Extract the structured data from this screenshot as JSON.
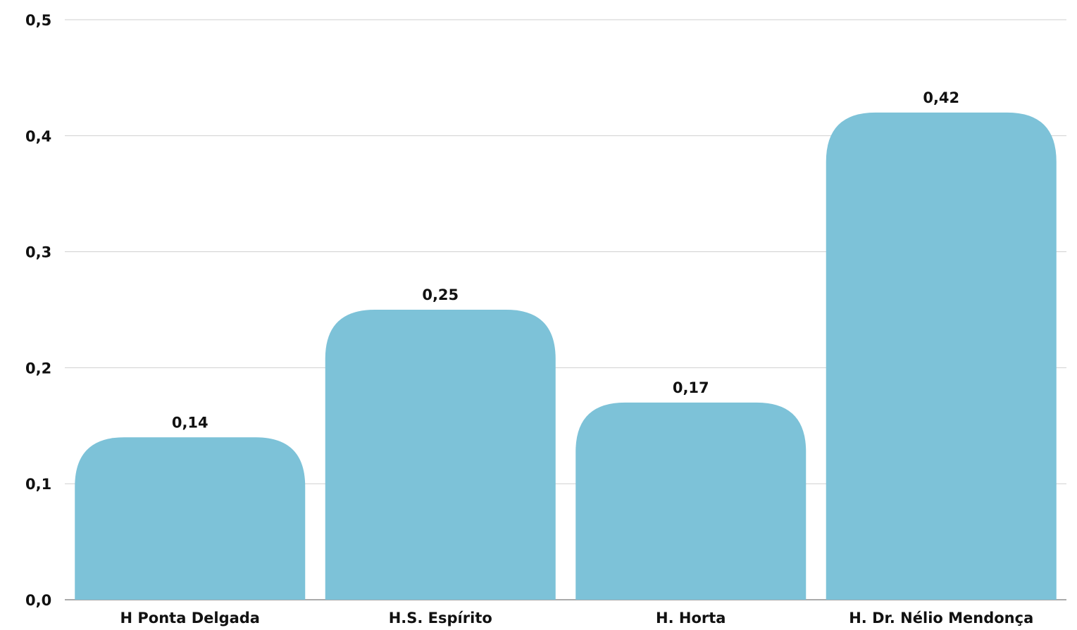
{
  "chart_data": {
    "type": "bar",
    "categories": [
      "H Ponta Delgada",
      "H.S. Espírito",
      "H. Horta",
      "H. Dr. Nélio Mendonça"
    ],
    "values": [
      0.14,
      0.25,
      0.17,
      0.42
    ],
    "data_labels": [
      "0,14",
      "0,25",
      "0,17",
      "0,42"
    ],
    "yticks": [
      0.0,
      0.1,
      0.2,
      0.3,
      0.4,
      0.5
    ],
    "ytick_labels": [
      "0,0",
      "0,1",
      "0,2",
      "0,3",
      "0,4",
      "0,5"
    ],
    "ylim": [
      0,
      0.5
    ],
    "grid": true,
    "legend": "none",
    "bar_color": "#7dc2d8"
  }
}
